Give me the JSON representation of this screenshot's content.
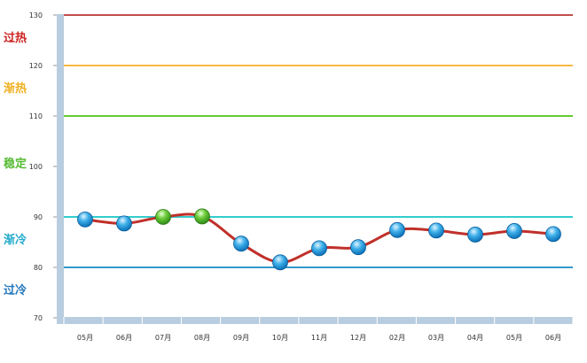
{
  "chart_data": {
    "type": "line",
    "title": "",
    "xlabel": "",
    "ylabel": "",
    "ylim": [
      70,
      130
    ],
    "y_ticks": [
      "70",
      "80",
      "90",
      "100",
      "110",
      "120",
      "130"
    ],
    "categories": [
      "05月",
      "06月",
      "07月",
      "08月",
      "09月",
      "10月",
      "11月",
      "12月",
      "02月",
      "03月",
      "04月",
      "05月",
      "06月"
    ],
    "series": [
      {
        "values": [
          89.5,
          88.7,
          90.0,
          90.1,
          84.7,
          81.0,
          83.8,
          84.0,
          87.4,
          87.3,
          86.5,
          87.2,
          86.6
        ],
        "line_color": "#c0302a",
        "point_colors": [
          "#1e90d8",
          "#1e90d8",
          "#4cb82c",
          "#4cb82c",
          "#1e90d8",
          "#1e90d8",
          "#1e90d8",
          "#1e90d8",
          "#1e90d8",
          "#1e90d8",
          "#1e90d8",
          "#1e90d8",
          "#1e90d8"
        ]
      }
    ],
    "threshold_lines": [
      {
        "value": 130,
        "color": "#c0504d"
      },
      {
        "value": 120,
        "color": "#f5b942"
      },
      {
        "value": 110,
        "color": "#66cc33"
      },
      {
        "value": 90,
        "color": "#33cccc"
      },
      {
        "value": 80,
        "color": "#3399cc"
      }
    ],
    "zones": [
      {
        "label": "过热",
        "color": "#cc2222",
        "value": 126
      },
      {
        "label": "渐热",
        "color": "#f0b020",
        "value": 116
      },
      {
        "label": "稳定",
        "color": "#55bb33",
        "value": 101
      },
      {
        "label": "渐冷",
        "color": "#22aacc",
        "value": 86
      },
      {
        "label": "过冷",
        "color": "#2277bb",
        "value": 76
      }
    ],
    "grid": false,
    "legend": "none"
  }
}
